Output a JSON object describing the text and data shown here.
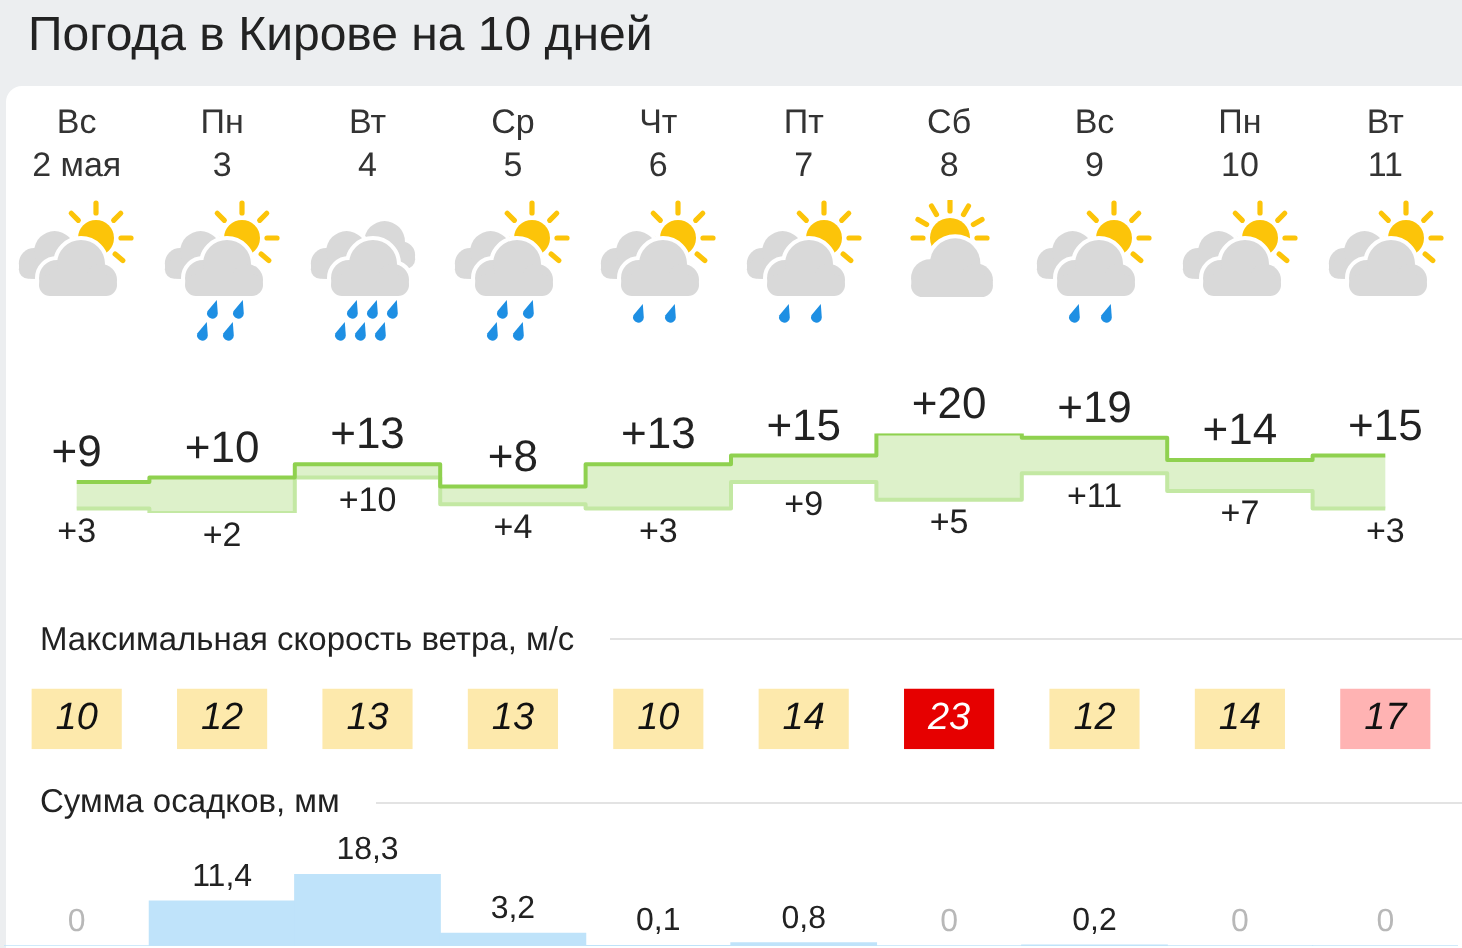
{
  "chart_data": [
    {
      "type": "step",
      "title": "Погода в Кирове на 10 дней",
      "categories": [
        "Вс\n2 мая",
        "Пн\n3",
        "Вт\n4",
        "Ср\n5",
        "Чт\n6",
        "Пт\n7",
        "Сб\n8",
        "Вс\n9",
        "Пн\n10",
        "Вт\n11"
      ],
      "series": [
        {
          "color": "#8fd14f",
          "values": [
            9,
            10,
            13,
            8,
            13,
            15,
            20,
            19,
            14,
            15
          ],
          "lower": [
            3,
            2,
            10,
            4,
            3,
            9,
            5,
            11,
            7,
            3
          ],
          "upper": [
            9,
            10,
            13,
            8,
            13,
            15,
            20,
            19,
            14,
            15
          ],
          "value_labels": [
            "+9",
            "+10",
            "+13",
            "+8",
            "+13",
            "+15",
            "+20",
            "+19",
            "+14",
            "+15"
          ]
        },
        {
          "color": "#c3e8a3",
          "values": [
            3,
            2,
            10,
            4,
            3,
            9,
            5,
            11,
            7,
            3
          ],
          "value_labels": [
            "+3",
            "+2",
            "+10",
            "+4",
            "+3",
            "+9",
            "+5",
            "+11",
            "+7",
            "+3"
          ]
        }
      ],
      "tick_labels": "x"
    },
    {
      "type": "heatmap",
      "title": "Максимальная скорость ветра, м/с",
      "categories": [
        null,
        null,
        null,
        null,
        null,
        null,
        null,
        null,
        null,
        null
      ],
      "y_categories": [
        null
      ],
      "cells": [
        [
          10,
          12,
          13,
          13,
          10,
          14,
          23,
          12,
          14,
          17
        ]
      ],
      "colors": [
        "#fde9ac",
        "#fde9ac",
        "#fde9ac",
        "#fde9ac",
        "#fde9ac",
        "#fde9ac",
        "#e60000",
        "#fde9ac",
        "#fde9ac",
        "#ffb3b3"
      ],
      "data_labels": true
    },
    {
      "type": "bar",
      "title": "Сумма осадков, мм",
      "categories": [
        null,
        null,
        null,
        null,
        null,
        null,
        null,
        null,
        null,
        null
      ],
      "values": [
        0,
        11.4,
        18.3,
        3.2,
        0.1,
        0.8,
        0,
        0.2,
        0,
        0
      ],
      "value_labels": [
        "0",
        "11,4",
        "18,3",
        "3,2",
        "0,1",
        "0,8",
        "0",
        "0,2",
        "0",
        "0"
      ],
      "color": "#bfe3fa",
      "tick_labels": false
    }
  ]
}
